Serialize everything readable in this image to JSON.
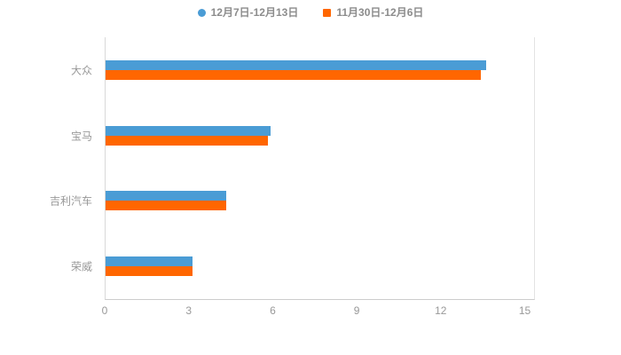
{
  "chart_data": {
    "type": "bar",
    "orientation": "horizontal",
    "title": "",
    "xlabel": "",
    "ylabel": "",
    "categories": [
      "大众",
      "宝马",
      "吉利汽车",
      "荣威"
    ],
    "series": [
      {
        "name": "12月7日-12月13日",
        "color": "#4a9cd5",
        "marker": "circle-icon",
        "values": [
          13.6,
          5.9,
          4.3,
          3.1
        ]
      },
      {
        "name": "11月30日-12月6日",
        "color": "#ff6600",
        "marker": "square-icon",
        "values": [
          13.4,
          5.8,
          4.3,
          3.1
        ]
      }
    ],
    "xlim": [
      0,
      15.3
    ],
    "xticks": [
      0,
      3,
      6,
      9,
      12,
      15
    ],
    "grid": false,
    "legend_position": "top-center",
    "axis_line_color": "#cccccc",
    "tick_label_color": "#999999",
    "category_label_color": "#999999",
    "background_color": "#ffffff"
  }
}
